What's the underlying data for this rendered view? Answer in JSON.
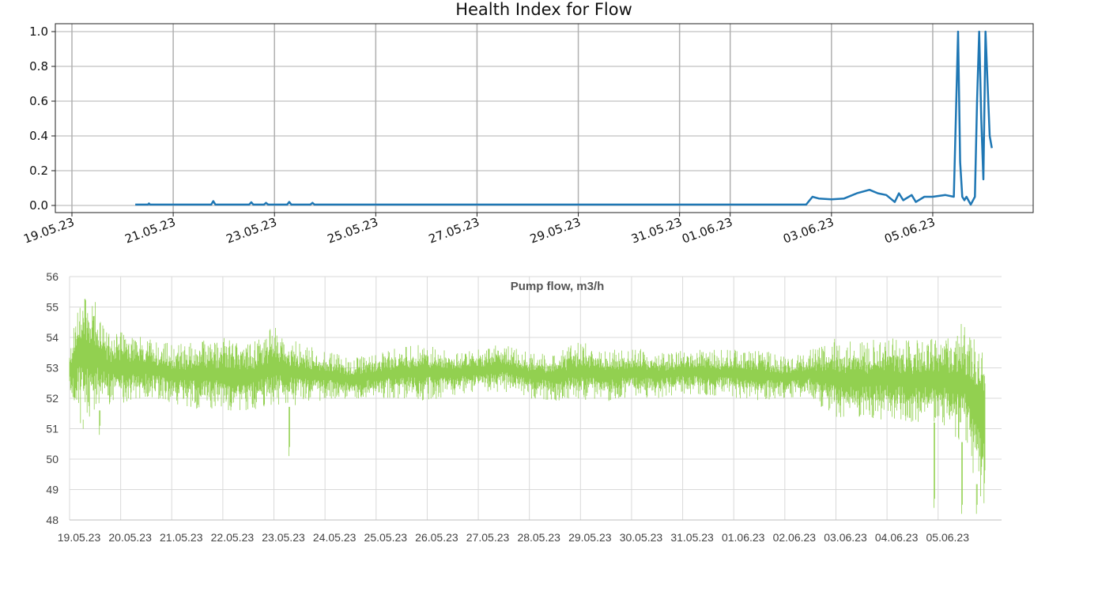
{
  "chart_data": [
    {
      "type": "line",
      "title": "Health Index for Flow",
      "ylim": [
        0,
        1.0
      ],
      "yticks": [
        "0.0",
        "0.2",
        "0.4",
        "0.6",
        "0.8",
        "1.0"
      ],
      "xlim": [
        "19.05.23",
        "06.06.23"
      ],
      "xticks": [
        "19.05.23",
        "21.05.23",
        "23.05.23",
        "25.05.23",
        "27.05.23",
        "29.05.23",
        "31.05.23",
        "01.06.23",
        "03.06.23",
        "05.06.23"
      ],
      "grid": true,
      "colors": {
        "line": "#1f77b4",
        "grid": "#b0b0b0"
      },
      "series": [
        {
          "x": [
            "20.05.23 06:00",
            "20.05.23 12:00",
            "20.05.23 12:30",
            "20.05.23 13:00",
            "21.05.23 18:00",
            "21.05.23 19:00",
            "21.05.23 20:00",
            "22.05.23 12:00",
            "22.05.23 13:00",
            "22.05.23 14:00",
            "22.05.23 19:00",
            "22.05.23 20:00",
            "22.05.23 21:00",
            "23.05.23 06:00",
            "23.05.23 07:00",
            "23.05.23 08:00",
            "23.05.23 17:00",
            "23.05.23 18:00",
            "23.05.23 19:00",
            "24.05.23 00:00",
            "02.06.23 12:00",
            "02.06.23 15:00",
            "02.06.23 18:00",
            "03.06.23 00:00",
            "03.06.23 06:00",
            "03.06.23 12:00",
            "03.06.23 18:00",
            "03.06.23 22:00",
            "04.06.23 02:00",
            "04.06.23 06:00",
            "04.06.23 08:00",
            "04.06.23 10:00",
            "04.06.23 14:00",
            "04.06.23 16:00",
            "04.06.23 20:00",
            "05.06.23 00:00",
            "05.06.23 06:00",
            "05.06.23 10:00",
            "05.06.23 12:00",
            "05.06.23 13:00",
            "05.06.23 14:00",
            "05.06.23 15:00",
            "05.06.23 16:00",
            "05.06.23 18:00",
            "05.06.23 20:00",
            "05.06.23 21:00",
            "05.06.23 22:00",
            "05.06.23 23:00",
            "06.06.23 00:00",
            "06.06.23 01:00",
            "06.06.23 02:00",
            "06.06.23 03:00",
            "06.06.23 04:00"
          ],
          "y": [
            0.005,
            0.005,
            0.012,
            0.005,
            0.005,
            0.025,
            0.005,
            0.005,
            0.018,
            0.005,
            0.005,
            0.015,
            0.005,
            0.005,
            0.02,
            0.005,
            0.005,
            0.015,
            0.005,
            0.005,
            0.005,
            0.05,
            0.04,
            0.035,
            0.04,
            0.07,
            0.09,
            0.07,
            0.06,
            0.02,
            0.07,
            0.03,
            0.06,
            0.02,
            0.05,
            0.05,
            0.06,
            0.05,
            1.0,
            0.25,
            0.05,
            0.03,
            0.05,
            0.005,
            0.05,
            0.6,
            1.0,
            0.5,
            0.15,
            1.0,
            0.7,
            0.4,
            0.33
          ]
        }
      ]
    },
    {
      "type": "line",
      "title": "Pump flow, m3/h",
      "ylim": [
        48,
        56
      ],
      "yticks": [
        "48",
        "49",
        "50",
        "51",
        "52",
        "53",
        "54",
        "55",
        "56"
      ],
      "xlim": [
        "19.05.23",
        "05.06.23 22:00"
      ],
      "xticks": [
        "19.05.23",
        "20.05.23",
        "21.05.23",
        "22.05.23",
        "23.05.23",
        "24.05.23",
        "25.05.23",
        "26.05.23",
        "27.05.23",
        "28.05.23",
        "29.05.23",
        "30.05.23",
        "31.05.23",
        "01.06.23",
        "02.06.23",
        "03.06.23",
        "04.06.23",
        "05.06.23"
      ],
      "grid": true,
      "colors": {
        "line": "#92d050",
        "grid": "#d9d9d9"
      },
      "series": [
        {
          "x": [
            "19.05.23 00:00",
            "19.05.23 06:00",
            "19.05.23 12:00",
            "19.05.23 18:00",
            "20.05.23 00:00",
            "20.05.23 12:00",
            "21.05.23 00:00",
            "21.05.23 12:00",
            "22.05.23 00:00",
            "22.05.23 12:00",
            "23.05.23 00:00",
            "23.05.23 12:00",
            "24.05.23 00:00",
            "24.05.23 12:00",
            "25.05.23 00:00",
            "25.05.23 12:00",
            "26.05.23 00:00",
            "26.05.23 12:00",
            "27.05.23 00:00",
            "27.05.23 12:00",
            "28.05.23 00:00",
            "28.05.23 12:00",
            "29.05.23 00:00",
            "29.05.23 12:00",
            "30.05.23 00:00",
            "30.05.23 12:00",
            "31.05.23 00:00",
            "31.05.23 12:00",
            "01.06.23 00:00",
            "01.06.23 12:00",
            "02.06.23 00:00",
            "02.06.23 12:00",
            "03.06.23 00:00",
            "03.06.23 12:00",
            "04.06.23 00:00",
            "04.06.23 12:00",
            "05.06.23 00:00",
            "05.06.23 12:00",
            "05.06.23 22:00"
          ],
          "low": [
            52.2,
            51.0,
            51.5,
            51.8,
            51.8,
            52.0,
            51.8,
            51.6,
            51.6,
            51.6,
            51.6,
            51.8,
            51.9,
            52.0,
            52.0,
            52.0,
            51.9,
            52.1,
            52.2,
            52.2,
            52.0,
            51.9,
            51.9,
            51.9,
            52.0,
            52.0,
            52.1,
            52.1,
            52.0,
            51.9,
            52.0,
            52.0,
            51.3,
            51.3,
            51.3,
            51.2,
            51.2,
            50.5,
            48.3
          ],
          "high": [
            53.5,
            56.0,
            55.2,
            54.2,
            54.2,
            54.0,
            53.8,
            53.9,
            54.0,
            53.8,
            54.4,
            53.8,
            53.6,
            53.3,
            53.5,
            53.7,
            53.8,
            53.6,
            53.6,
            53.8,
            53.5,
            53.5,
            53.9,
            53.6,
            53.7,
            53.5,
            53.6,
            53.6,
            53.6,
            53.6,
            53.4,
            53.6,
            54.0,
            53.9,
            54.0,
            53.9,
            54.0,
            54.6,
            54.0
          ],
          "dips": [
            {
              "x": "19.05.23 06:00",
              "y": 51.0
            },
            {
              "x": "19.05.23 14:00",
              "y": 50.8
            },
            {
              "x": "23.05.23 07:00",
              "y": 50.1
            },
            {
              "x": "04.06.23 22:00",
              "y": 48.4
            },
            {
              "x": "05.06.23 11:00",
              "y": 48.2
            },
            {
              "x": "05.06.23 18:00",
              "y": 48.2
            }
          ]
        }
      ]
    }
  ]
}
